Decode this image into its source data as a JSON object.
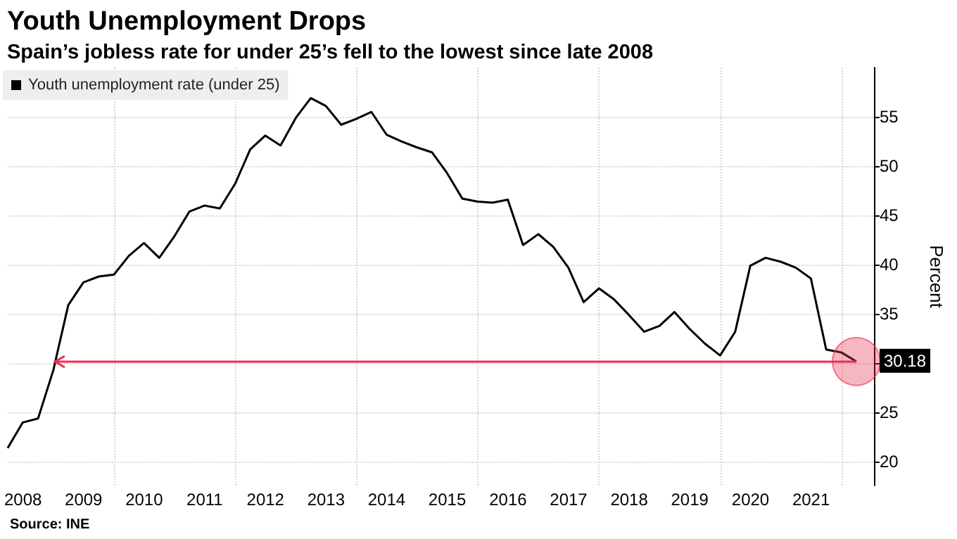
{
  "chart_data": {
    "type": "line",
    "title": "Youth Unemployment Drops",
    "subtitle": "Spain’s jobless rate for under 25’s fell to the lowest since late 2008",
    "ylabel": "Percent",
    "annotations": [
      "Source: INE",
      {
        "text": "30.18",
        "x": "2022-03-31",
        "y": 30.18
      }
    ],
    "x": [
      "2008-03-31",
      "2008-06-30",
      "2008-09-30",
      "2008-12-31",
      "2009-03-31",
      "2009-06-30",
      "2009-09-30",
      "2009-12-31",
      "2010-03-31",
      "2010-06-30",
      "2010-09-30",
      "2010-12-31",
      "2011-03-31",
      "2011-06-30",
      "2011-09-30",
      "2011-12-31",
      "2012-03-31",
      "2012-06-30",
      "2012-09-30",
      "2012-12-31",
      "2013-03-31",
      "2013-06-30",
      "2013-09-30",
      "2013-12-31",
      "2014-03-31",
      "2014-06-30",
      "2014-09-30",
      "2014-12-31",
      "2015-03-31",
      "2015-06-30",
      "2015-09-30",
      "2015-12-31",
      "2016-03-31",
      "2016-06-30",
      "2016-09-30",
      "2016-12-31",
      "2017-03-31",
      "2017-06-30",
      "2017-09-30",
      "2017-12-31",
      "2018-03-31",
      "2018-06-30",
      "2018-09-30",
      "2018-12-31",
      "2019-03-31",
      "2019-06-30",
      "2019-09-30",
      "2019-12-31",
      "2020-03-31",
      "2020-06-30",
      "2020-09-30",
      "2020-12-31",
      "2021-03-31",
      "2021-06-30",
      "2021-09-30",
      "2021-12-31",
      "2022-03-31"
    ],
    "series": [
      {
        "name": "Youth unemployment rate (under 25)",
        "color": "#000000",
        "values": [
          21.4,
          24.0,
          24.4,
          29.3,
          35.9,
          38.2,
          38.8,
          39.0,
          40.9,
          42.2,
          40.7,
          42.9,
          45.4,
          46.0,
          45.7,
          48.2,
          51.7,
          53.1,
          52.1,
          54.9,
          56.9,
          56.1,
          54.2,
          54.8,
          55.5,
          53.2,
          52.5,
          51.9,
          51.4,
          49.3,
          46.7,
          46.4,
          46.3,
          46.6,
          42.0,
          43.1,
          41.8,
          39.7,
          36.2,
          37.6,
          36.5,
          34.9,
          33.2,
          33.8,
          35.2,
          33.5,
          32.0,
          30.8,
          33.2,
          39.9,
          40.7,
          40.3,
          39.7,
          38.6,
          31.4,
          31.1,
          30.18
        ]
      }
    ],
    "xlim": [
      "2008-03-31",
      "2022-07-15"
    ],
    "xticks": [
      {
        "value": "2008-07-01",
        "label": "2008"
      },
      {
        "value": "2009-07-01",
        "label": "2009"
      },
      {
        "value": "2010-07-01",
        "label": "2010"
      },
      {
        "value": "2011-07-01",
        "label": "2011"
      },
      {
        "value": "2012-07-01",
        "label": "2012"
      },
      {
        "value": "2013-07-01",
        "label": "2013"
      },
      {
        "value": "2014-07-01",
        "label": "2014"
      },
      {
        "value": "2015-07-01",
        "label": "2015"
      },
      {
        "value": "2016-07-01",
        "label": "2016"
      },
      {
        "value": "2017-07-01",
        "label": "2017"
      },
      {
        "value": "2018-07-01",
        "label": "2018"
      },
      {
        "value": "2019-07-01",
        "label": "2019"
      },
      {
        "value": "2020-07-01",
        "label": "2020"
      },
      {
        "value": "2021-07-01",
        "label": "2021"
      },
      {
        "value": "2010-01-01",
        "label": null
      },
      {
        "value": "2012-01-01",
        "label": null
      },
      {
        "value": "2014-01-01",
        "label": null
      },
      {
        "value": "2016-01-01",
        "label": null
      },
      {
        "value": "2018-01-01",
        "label": null
      },
      {
        "value": "2020-01-01",
        "label": null
      },
      {
        "value": "2022-01-01",
        "label": null
      }
    ],
    "ylim": [
      17.6,
      60
    ],
    "yticks": [
      20,
      25,
      {
        "value": 30,
        "label": null
      },
      35,
      40,
      45,
      50,
      55
    ],
    "ref_lines": [
      {
        "axis": "y",
        "value": 30.18,
        "color": "#e8314f"
      }
    ],
    "grid": true,
    "legend": "top left",
    "marker": "none",
    "line_style": "solid"
  }
}
